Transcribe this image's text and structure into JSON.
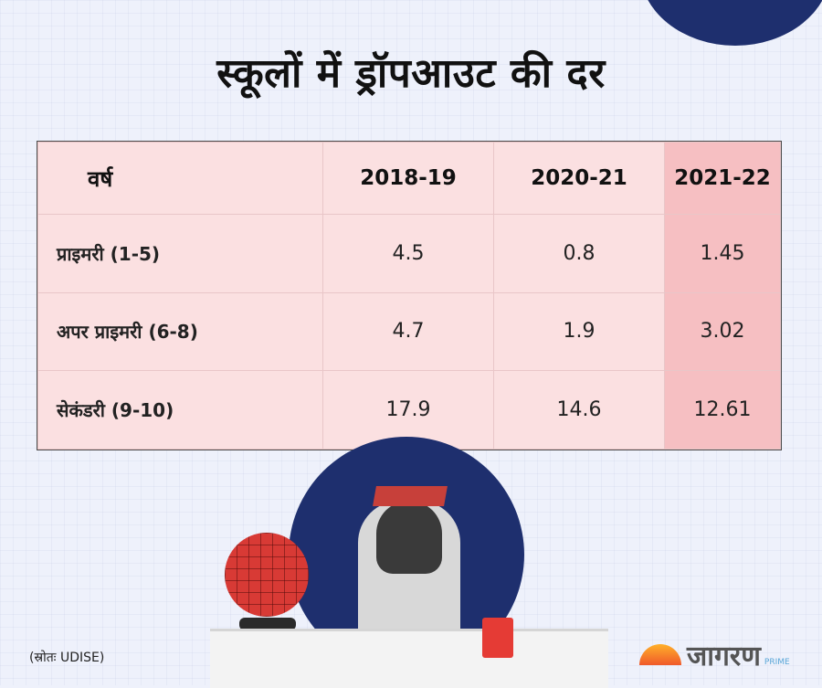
{
  "title": "स्कूलों में ड्रॉपआउट की दर",
  "table": {
    "header": [
      "वर्ष",
      "2018-19",
      "2020-21",
      "2021-22"
    ],
    "rows": [
      {
        "label": "प्राइमरी (1-5)",
        "values": [
          "4.5",
          "0.8",
          "1.45"
        ]
      },
      {
        "label": "अपर प्राइमरी (6-8)",
        "values": [
          "4.7",
          "1.9",
          "3.02"
        ]
      },
      {
        "label": "सेकंडरी (9-10)",
        "values": [
          "17.9",
          "14.6",
          "12.61"
        ]
      }
    ]
  },
  "chart_data": {
    "type": "table",
    "title": "स्कूलों में ड्रॉपआउट की दर",
    "columns": [
      "2018-19",
      "2020-21",
      "2021-22"
    ],
    "series": [
      {
        "name": "प्राइमरी (1-5)",
        "values": [
          4.5,
          0.8,
          1.45
        ]
      },
      {
        "name": "अपर प्राइमरी (6-8)",
        "values": [
          4.7,
          1.9,
          3.02
        ]
      },
      {
        "name": "सेकंडरी (9-10)",
        "values": [
          17.9,
          14.6,
          12.61
        ]
      }
    ]
  },
  "source": "(स्रोतः UDISE)",
  "brand": {
    "name": "जागरण",
    "sub": "PRIME"
  },
  "colors": {
    "navy": "#1e2f6e",
    "table_bg": "#fbe0e1",
    "highlight_col": "#f6bfc2",
    "accent_red": "#d83a35"
  }
}
